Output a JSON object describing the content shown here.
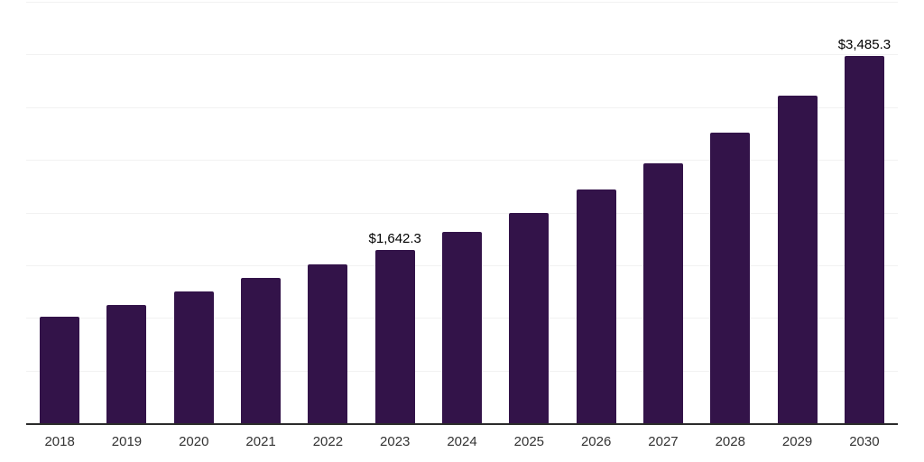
{
  "chart_data": {
    "type": "bar",
    "categories": [
      "2018",
      "2019",
      "2020",
      "2021",
      "2022",
      "2023",
      "2024",
      "2025",
      "2026",
      "2027",
      "2028",
      "2029",
      "2030"
    ],
    "values": [
      1012,
      1125,
      1251,
      1377,
      1505,
      1642.3,
      1814,
      1994,
      2217,
      2471,
      2760,
      3108,
      3485.3
    ],
    "data_labels": [
      "",
      "",
      "",
      "",
      "",
      "$1,642.3",
      "",
      "",
      "",
      "",
      "",
      "",
      "$3,485.3"
    ],
    "xlabel": "",
    "ylabel": "",
    "ylim": [
      0,
      4000
    ],
    "gridline_interval": 500,
    "grid": true,
    "legend": "none",
    "colors": {
      "bar": "#331349",
      "gridline": "#f2f2f2",
      "axis_line": "#2b2b2b",
      "tick_label": "#333333",
      "data_label": "#000000",
      "background": "#ffffff"
    }
  }
}
